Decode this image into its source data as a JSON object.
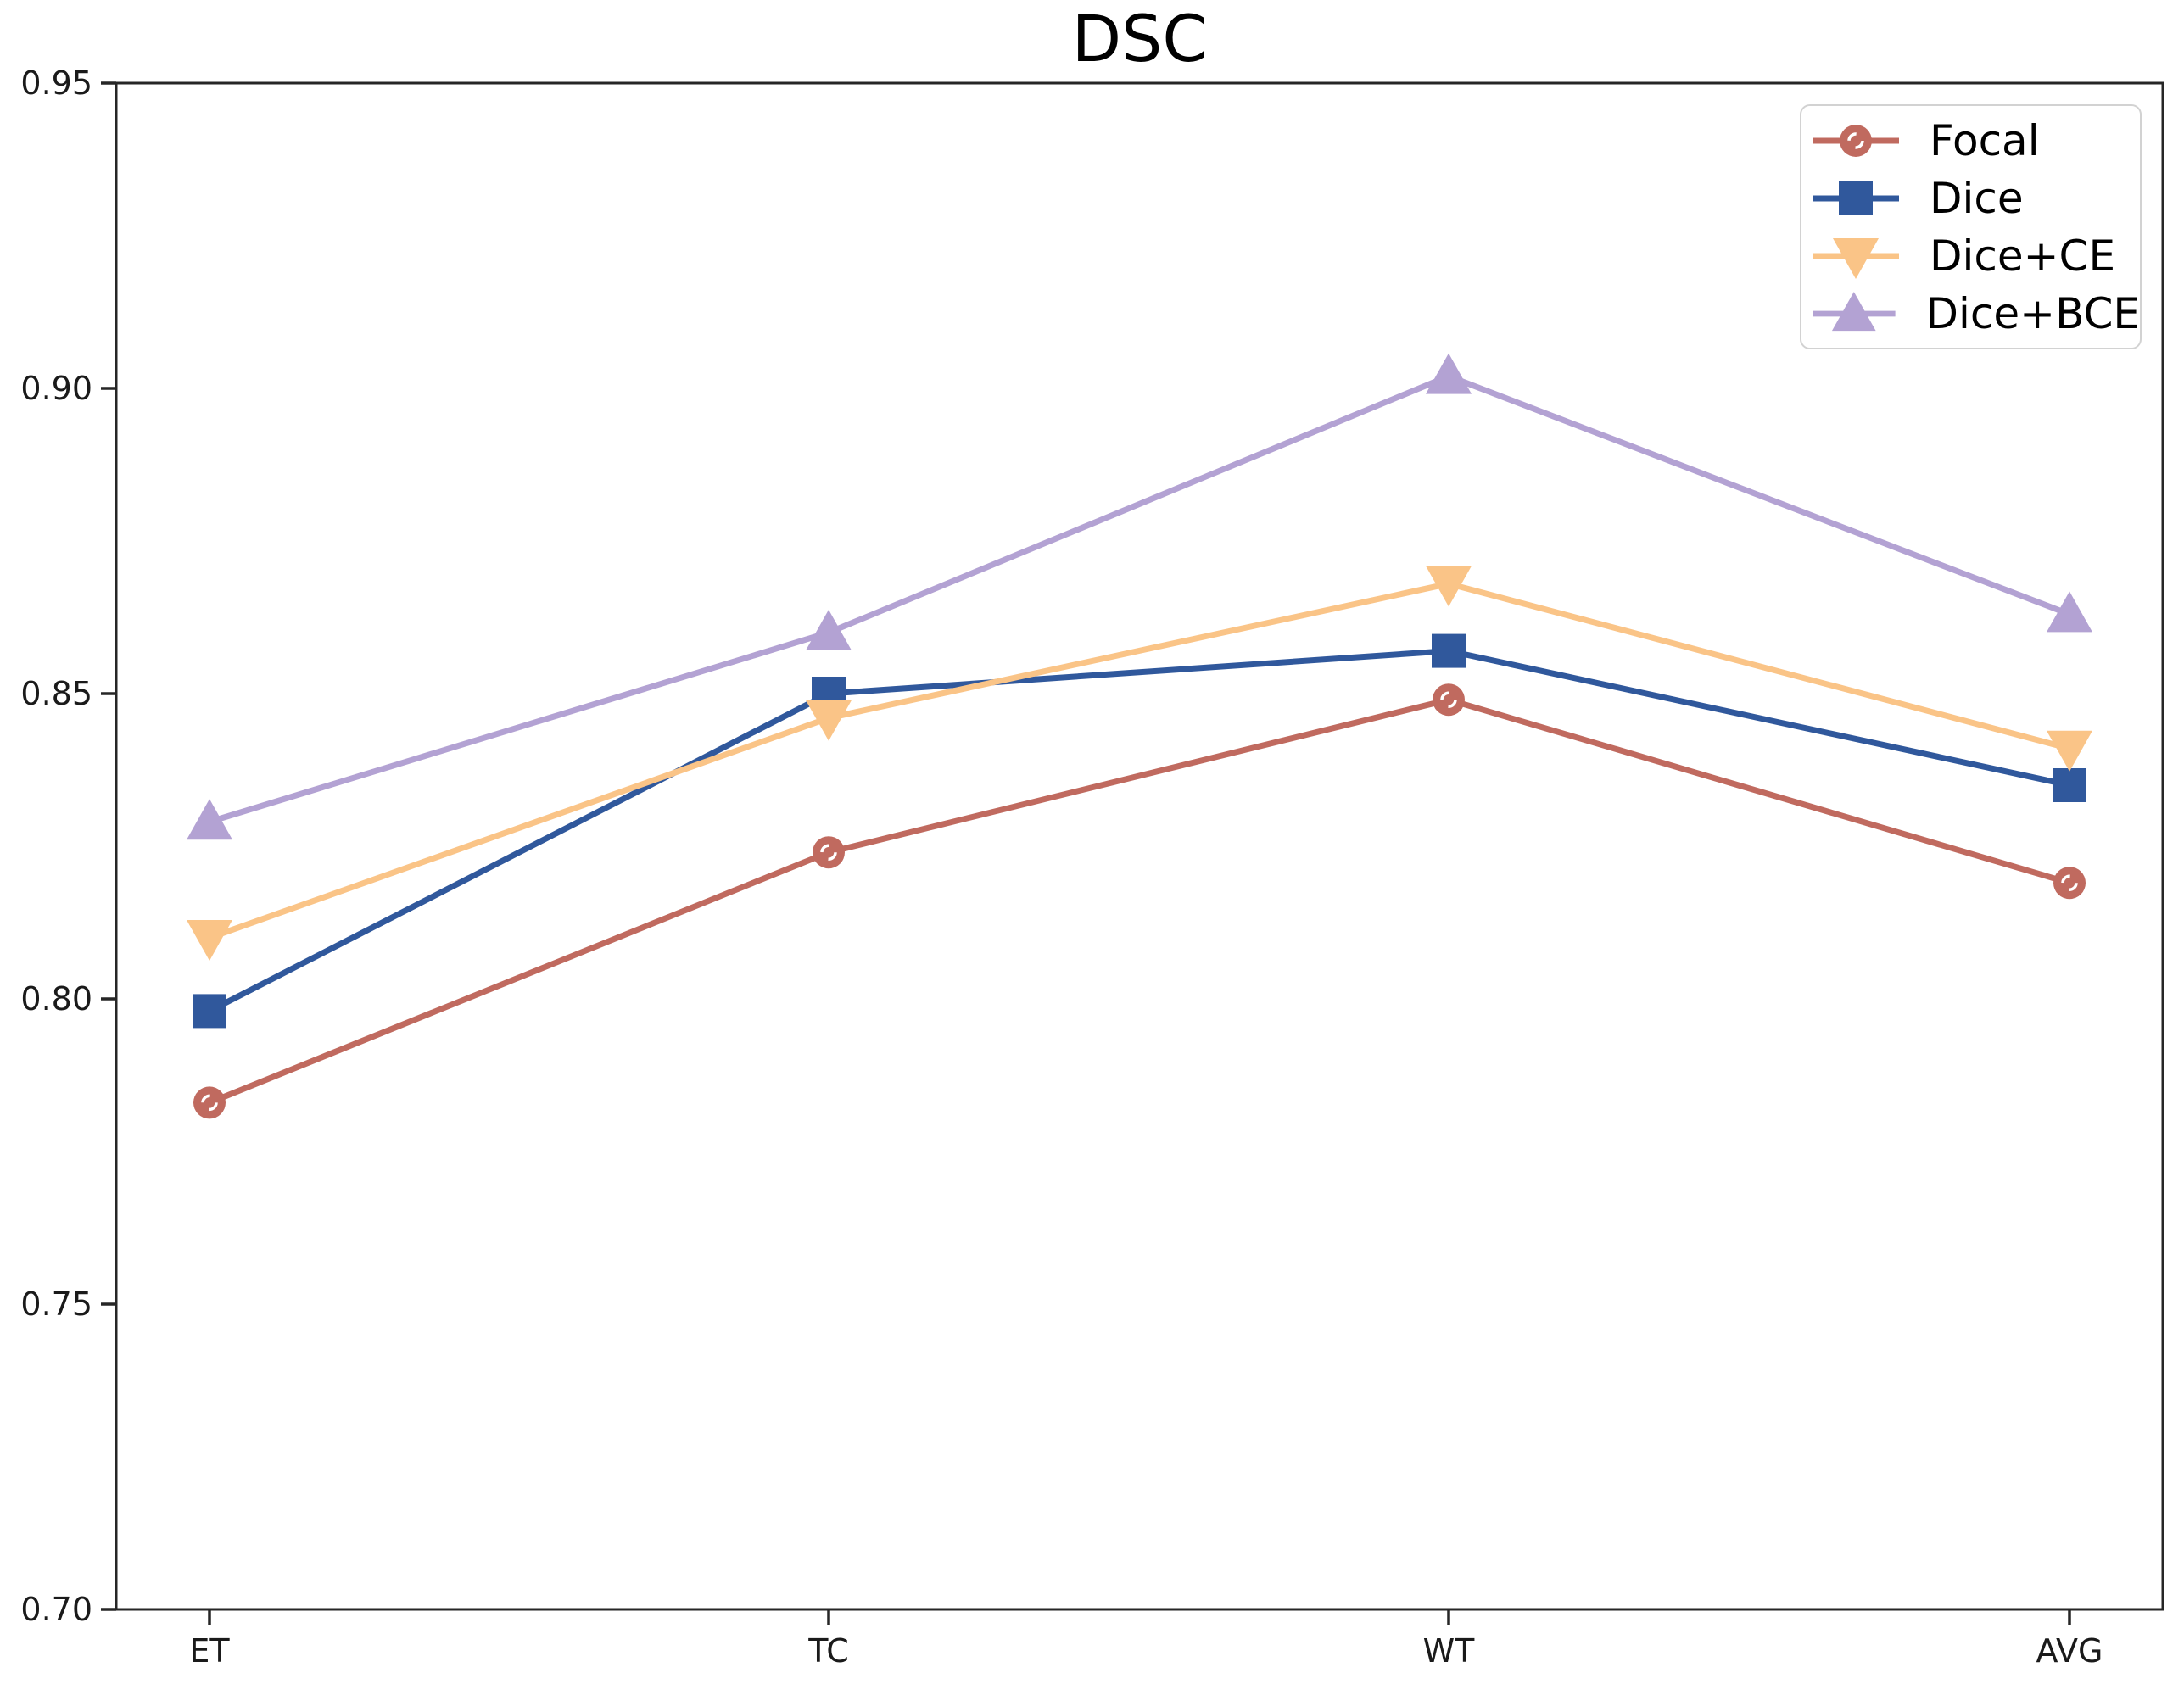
{
  "chart_data": {
    "type": "line",
    "title": "DSC",
    "categories": [
      "ET",
      "TC",
      "WT",
      "AVG"
    ],
    "xlabel": "",
    "ylabel": "",
    "ylim": [
      0.7,
      0.95
    ],
    "y_ticks": [
      "0.95",
      "0.90",
      "0.85",
      "0.80",
      "0.75",
      "0.70"
    ],
    "grid": false,
    "legend_position": "upper right",
    "series": [
      {
        "name": "Focal",
        "marker": "circle",
        "color": "#c06a5f",
        "values": [
          0.783,
          0.824,
          0.849,
          0.819
        ]
      },
      {
        "name": "Dice",
        "marker": "square",
        "color": "#30589c",
        "values": [
          0.798,
          0.85,
          0.857,
          0.835
        ]
      },
      {
        "name": "Dice+CE",
        "marker": "triangle-down",
        "color": "#fac487",
        "values": [
          0.81,
          0.846,
          0.868,
          0.841
        ]
      },
      {
        "name": "Dice+BCE",
        "marker": "triangle-up",
        "color": "#b3a2d3",
        "values": [
          0.829,
          0.86,
          0.902,
          0.863
        ]
      }
    ],
    "colors": {
      "axis": "#262626",
      "tick_label": "#1a1a1a",
      "title": "#000000",
      "legend_border": "#d2d2d2",
      "background": "#ffffff"
    }
  }
}
